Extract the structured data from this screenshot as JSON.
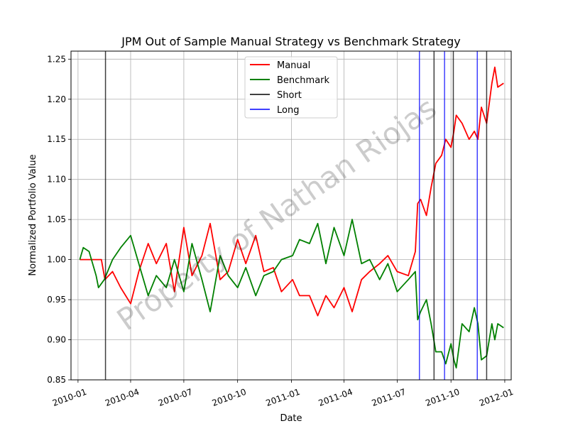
{
  "chart_data": {
    "type": "line",
    "title": "JPM Out of Sample Manual Strategy vs Benchmark Strategy",
    "xlabel": "Date",
    "ylabel": "Normalized Portfolio Value",
    "watermark": "Property of Nathan Riojas",
    "x_ticks": [
      "2010-01",
      "2010-04",
      "2010-07",
      "2010-10",
      "2011-01",
      "2011-04",
      "2011-07",
      "2011-10",
      "2012-01"
    ],
    "y_ticks": [
      "0.85",
      "0.90",
      "0.95",
      "1.00",
      "1.05",
      "1.10",
      "1.15",
      "1.20",
      "1.25"
    ],
    "xlim": [
      "2009-12-20",
      "2012-01-12"
    ],
    "ylim": [
      0.85,
      1.26
    ],
    "grid": true,
    "legend_position": "top-center",
    "series": [
      {
        "name": "Manual",
        "color": "#ff0000",
        "x": [
          "2010-01-04",
          "2010-02-10",
          "2010-02-16",
          "2010-03-01",
          "2010-03-15",
          "2010-04-01",
          "2010-04-15",
          "2010-05-01",
          "2010-05-15",
          "2010-06-01",
          "2010-06-15",
          "2010-07-01",
          "2010-07-15",
          "2010-08-01",
          "2010-08-15",
          "2010-09-01",
          "2010-09-15",
          "2010-10-01",
          "2010-10-15",
          "2010-11-01",
          "2010-11-15",
          "2010-12-01",
          "2010-12-15",
          "2011-01-03",
          "2011-01-15",
          "2011-02-01",
          "2011-02-15",
          "2011-03-01",
          "2011-03-15",
          "2011-04-01",
          "2011-04-15",
          "2011-05-01",
          "2011-05-15",
          "2011-06-01",
          "2011-06-15",
          "2011-07-01",
          "2011-07-20",
          "2011-08-01",
          "2011-08-05",
          "2011-08-10",
          "2011-08-20",
          "2011-08-28",
          "2011-09-05",
          "2011-09-15",
          "2011-09-22",
          "2011-10-01",
          "2011-10-06",
          "2011-10-10",
          "2011-10-20",
          "2011-11-01",
          "2011-11-10",
          "2011-11-16",
          "2011-11-22",
          "2011-12-01",
          "2011-12-10",
          "2011-12-15",
          "2011-12-20",
          "2011-12-30"
        ],
        "values": [
          1.0,
          1.0,
          0.975,
          0.985,
          0.965,
          0.945,
          0.985,
          1.02,
          0.995,
          1.02,
          0.96,
          1.04,
          0.98,
          1.005,
          1.045,
          0.975,
          0.985,
          1.025,
          0.995,
          1.03,
          0.985,
          0.99,
          0.96,
          0.975,
          0.955,
          0.955,
          0.93,
          0.955,
          0.94,
          0.965,
          0.935,
          0.975,
          0.985,
          0.995,
          1.005,
          0.985,
          0.98,
          1.01,
          1.07,
          1.075,
          1.055,
          1.09,
          1.12,
          1.13,
          1.15,
          1.14,
          1.16,
          1.18,
          1.17,
          1.15,
          1.16,
          1.15,
          1.19,
          1.17,
          1.22,
          1.24,
          1.215,
          1.22
        ]
      },
      {
        "name": "Benchmark",
        "color": "#008000",
        "x": [
          "2010-01-04",
          "2010-01-10",
          "2010-01-20",
          "2010-02-01",
          "2010-02-05",
          "2010-02-15",
          "2010-03-01",
          "2010-03-15",
          "2010-04-01",
          "2010-04-15",
          "2010-05-01",
          "2010-05-15",
          "2010-06-01",
          "2010-06-15",
          "2010-07-01",
          "2010-07-15",
          "2010-08-01",
          "2010-08-15",
          "2010-09-01",
          "2010-09-15",
          "2010-10-01",
          "2010-10-15",
          "2010-11-01",
          "2010-11-15",
          "2010-12-01",
          "2010-12-15",
          "2011-01-03",
          "2011-01-15",
          "2011-02-01",
          "2011-02-15",
          "2011-03-01",
          "2011-03-15",
          "2011-04-01",
          "2011-04-15",
          "2011-05-01",
          "2011-05-15",
          "2011-06-01",
          "2011-06-15",
          "2011-07-01",
          "2011-07-20",
          "2011-08-01",
          "2011-08-05",
          "2011-08-10",
          "2011-08-20",
          "2011-08-28",
          "2011-09-05",
          "2011-09-15",
          "2011-09-22",
          "2011-10-01",
          "2011-10-06",
          "2011-10-10",
          "2011-10-20",
          "2011-11-01",
          "2011-11-10",
          "2011-11-16",
          "2011-11-22",
          "2011-12-01",
          "2011-12-10",
          "2011-12-15",
          "2011-12-20",
          "2011-12-30"
        ],
        "values": [
          1.0,
          1.015,
          1.01,
          0.98,
          0.965,
          0.975,
          1.0,
          1.015,
          1.03,
          0.995,
          0.955,
          0.98,
          0.965,
          1.0,
          0.96,
          1.02,
          0.975,
          0.935,
          1.005,
          0.98,
          0.965,
          0.99,
          0.955,
          0.98,
          0.985,
          1.0,
          1.005,
          1.025,
          1.02,
          1.045,
          0.995,
          1.04,
          1.005,
          1.05,
          0.995,
          1.0,
          0.975,
          0.995,
          0.96,
          0.975,
          0.985,
          0.925,
          0.935,
          0.95,
          0.92,
          0.885,
          0.885,
          0.87,
          0.895,
          0.875,
          0.865,
          0.92,
          0.91,
          0.94,
          0.92,
          0.875,
          0.88,
          0.92,
          0.9,
          0.92,
          0.915
        ]
      },
      {
        "name": "Short",
        "color": "#000000",
        "type": "vline",
        "dates": [
          "2010-02-17",
          "2011-09-02",
          "2011-10-05",
          "2011-12-01"
        ]
      },
      {
        "name": "Long",
        "color": "#0000ff",
        "type": "vline",
        "dates": [
          "2011-08-08",
          "2011-09-20",
          "2011-11-15"
        ]
      }
    ]
  }
}
